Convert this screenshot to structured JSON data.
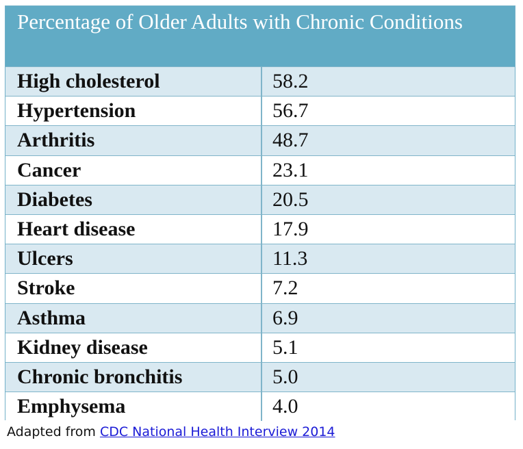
{
  "title": "Percentage of Older Adults with Chronic Conditions",
  "chart_data": {
    "type": "table",
    "title": "Percentage of Older Adults with Chronic Conditions",
    "rows": [
      {
        "label": "High cholesterol",
        "value": "58.2"
      },
      {
        "label": "Hypertension",
        "value": "56.7"
      },
      {
        "label": "Arthritis",
        "value": "48.7"
      },
      {
        "label": "Cancer",
        "value": "23.1"
      },
      {
        "label": "Diabetes",
        "value": "20.5"
      },
      {
        "label": "Heart disease",
        "value": "17.9"
      },
      {
        "label": "Ulcers",
        "value": "11.3"
      },
      {
        "label": "Stroke",
        "value": "7.2"
      },
      {
        "label": "Asthma",
        "value": "6.9"
      },
      {
        "label": "Kidney disease",
        "value": "5.1"
      },
      {
        "label": "Chronic bronchitis",
        "value": "5.0"
      },
      {
        "label": "Emphysema",
        "value": "4.0"
      }
    ]
  },
  "caption": {
    "prefix": "Adapted from ",
    "link_text": "CDC National Health Interview 2014"
  },
  "colors": {
    "header_bg": "#61abc5",
    "row_band": "#d9e9f1",
    "border": "#7fb4c9",
    "link": "#1a1ad6"
  }
}
